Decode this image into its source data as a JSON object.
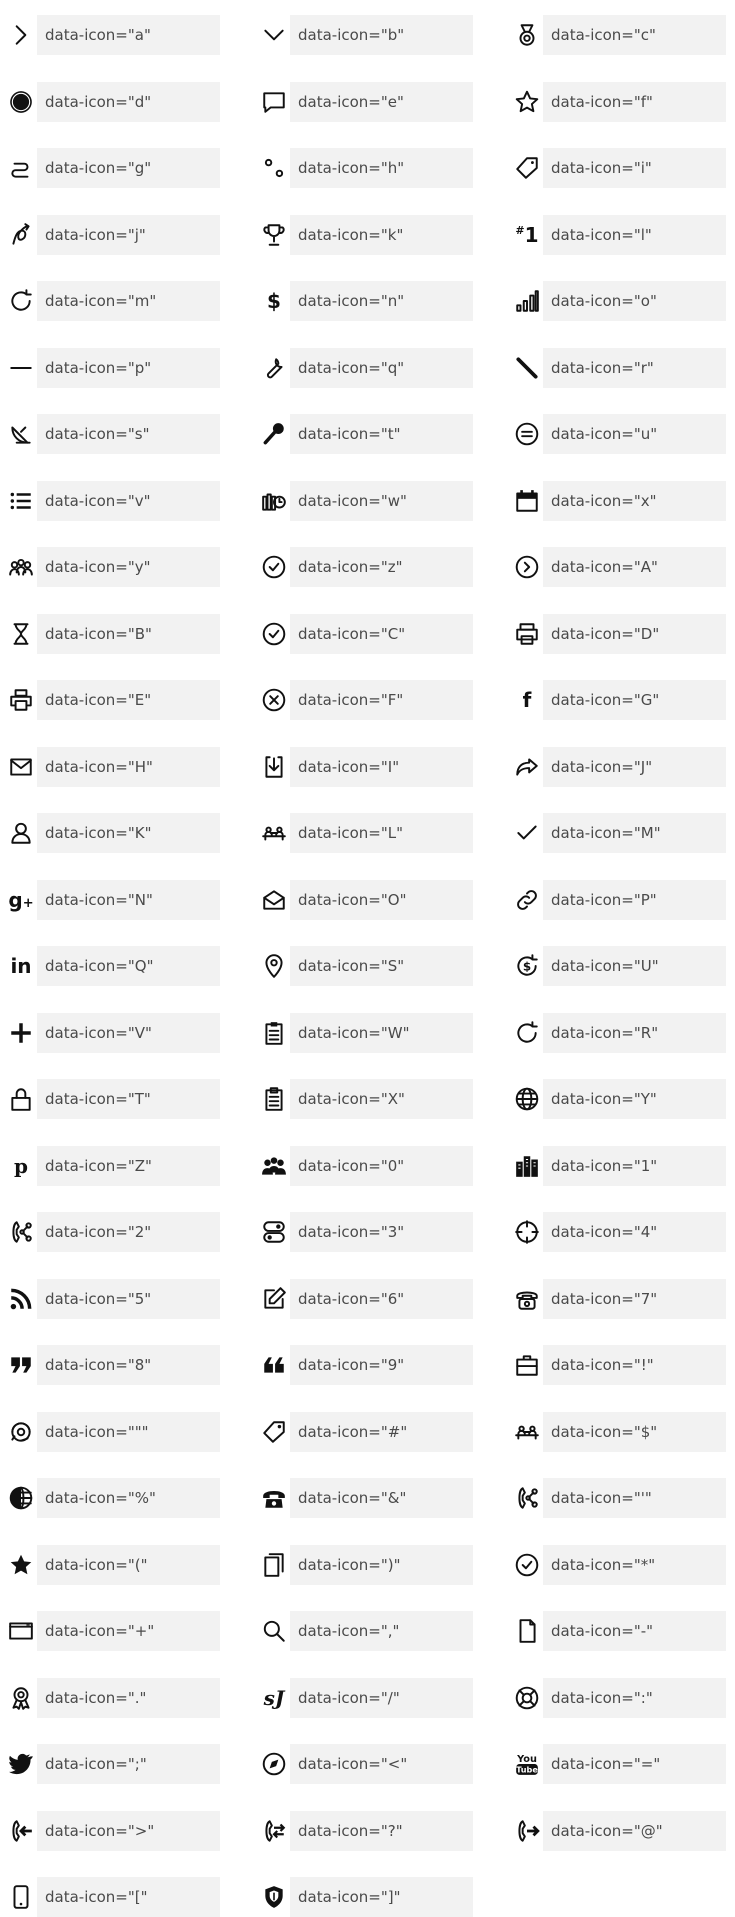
{
  "icons": [
    {
      "label": "data-icon=\"a\"",
      "icon": "chevron-right-icon"
    },
    {
      "label": "data-icon=\"b\"",
      "icon": "chevron-down-icon"
    },
    {
      "label": "data-icon=\"c\"",
      "icon": "medal-icon"
    },
    {
      "label": "data-icon=\"d\"",
      "icon": "seal-badge-icon"
    },
    {
      "label": "data-icon=\"e\"",
      "icon": "speech-bubble-icon"
    },
    {
      "label": "data-icon=\"f\"",
      "icon": "star-outline-icon"
    },
    {
      "label": "data-icon=\"g\"",
      "icon": "wind-curl-icon"
    },
    {
      "label": "data-icon=\"h\"",
      "icon": "two-circles-icon"
    },
    {
      "label": "data-icon=\"i\"",
      "icon": "tag-outline-icon"
    },
    {
      "label": "data-icon=\"j\"",
      "icon": "bent-arrow-icon"
    },
    {
      "label": "data-icon=\"k\"",
      "icon": "trophy-icon"
    },
    {
      "label": "data-icon=\"l\"",
      "icon": "number-one-icon"
    },
    {
      "label": "data-icon=\"m\"",
      "icon": "refresh-icon"
    },
    {
      "label": "data-icon=\"n\"",
      "icon": "dollar-icon"
    },
    {
      "label": "data-icon=\"o\"",
      "icon": "bar-chart-icon"
    },
    {
      "label": "data-icon=\"p\"",
      "icon": "minus-line-icon"
    },
    {
      "label": "data-icon=\"q\"",
      "icon": "wrench-icon"
    },
    {
      "label": "data-icon=\"r\"",
      "icon": "diagonal-line-icon"
    },
    {
      "label": "data-icon=\"s\"",
      "icon": "satellite-dish-icon"
    },
    {
      "label": "data-icon=\"t\"",
      "icon": "key-icon"
    },
    {
      "label": "data-icon=\"u\"",
      "icon": "menu-circle-icon"
    },
    {
      "label": "data-icon=\"v\"",
      "icon": "list-icon"
    },
    {
      "label": "data-icon=\"w\"",
      "icon": "money-clock-icon"
    },
    {
      "label": "data-icon=\"x\"",
      "icon": "calendar-icon"
    },
    {
      "label": "data-icon=\"y\"",
      "icon": "group-icon"
    },
    {
      "label": "data-icon=\"z\"",
      "icon": "check-circle-icon"
    },
    {
      "label": "data-icon=\"A\"",
      "icon": "arrow-right-circle-icon"
    },
    {
      "label": "data-icon=\"B\"",
      "icon": "hourglass-icon"
    },
    {
      "label": "data-icon=\"C\"",
      "icon": "check-circle-icon"
    },
    {
      "label": "data-icon=\"D\"",
      "icon": "printer-icon"
    },
    {
      "label": "data-icon=\"E\"",
      "icon": "printer-outline-icon"
    },
    {
      "label": "data-icon=\"F\"",
      "icon": "close-circle-icon"
    },
    {
      "label": "data-icon=\"G\"",
      "icon": "facebook-icon"
    },
    {
      "label": "data-icon=\"H\"",
      "icon": "mail-icon"
    },
    {
      "label": "data-icon=\"I\"",
      "icon": "download-box-icon"
    },
    {
      "label": "data-icon=\"J\"",
      "icon": "share-arrow-icon"
    },
    {
      "label": "data-icon=\"K\"",
      "icon": "user-icon"
    },
    {
      "label": "data-icon=\"L\"",
      "icon": "meeting-icon"
    },
    {
      "label": "data-icon=\"M\"",
      "icon": "checkmark-icon"
    },
    {
      "label": "data-icon=\"N\"",
      "icon": "google-plus-icon"
    },
    {
      "label": "data-icon=\"O\"",
      "icon": "open-mail-icon"
    },
    {
      "label": "data-icon=\"P\"",
      "icon": "link-icon"
    },
    {
      "label": "data-icon=\"Q\"",
      "icon": "linkedin-icon"
    },
    {
      "label": "data-icon=\"S\"",
      "icon": "map-pin-icon"
    },
    {
      "label": "data-icon=\"U\"",
      "icon": "dollar-refresh-icon"
    },
    {
      "label": "data-icon=\"V\"",
      "icon": "plus-icon"
    },
    {
      "label": "data-icon=\"W\"",
      "icon": "clipboard-icon"
    },
    {
      "label": "data-icon=\"R\"",
      "icon": "refresh-icon"
    },
    {
      "label": "data-icon=\"T\"",
      "icon": "lock-icon"
    },
    {
      "label": "data-icon=\"X\"",
      "icon": "clipboard-outline-icon"
    },
    {
      "label": "data-icon=\"Y\"",
      "icon": "globe-icon"
    },
    {
      "label": "data-icon=\"Z\"",
      "icon": "pinterest-icon"
    },
    {
      "label": "data-icon=\"0\"",
      "icon": "users-icon"
    },
    {
      "label": "data-icon=\"1\"",
      "icon": "buildings-icon"
    },
    {
      "label": "data-icon=\"2\"",
      "icon": "phone-share-icon"
    },
    {
      "label": "data-icon=\"3\"",
      "icon": "toggle-stack-icon"
    },
    {
      "label": "data-icon=\"4\"",
      "icon": "crosshair-icon"
    },
    {
      "label": "data-icon=\"5\"",
      "icon": "rss-icon"
    },
    {
      "label": "data-icon=\"6\"",
      "icon": "edit-icon"
    },
    {
      "label": "data-icon=\"7\"",
      "icon": "telephone-icon"
    },
    {
      "label": "data-icon=\"8\"",
      "icon": "quote-open-icon"
    },
    {
      "label": "data-icon=\"9\"",
      "icon": "quote-close-icon"
    },
    {
      "label": "data-icon=\"!\"",
      "icon": "briefcase-icon"
    },
    {
      "label": "data-icon=\"\"\"",
      "icon": "support-headset-icon"
    },
    {
      "label": "data-icon=\"#\"",
      "icon": "tag-icon"
    },
    {
      "label": "data-icon=\"$\"",
      "icon": "meeting-icon"
    },
    {
      "label": "data-icon=\"%\"",
      "icon": "globe-half-icon"
    },
    {
      "label": "data-icon=\"&\"",
      "icon": "telephone-filled-icon"
    },
    {
      "label": "data-icon=\"'\"",
      "icon": "phone-share-icon"
    },
    {
      "label": "data-icon=\"(\"",
      "icon": "star-filled-icon"
    },
    {
      "label": "data-icon=\")\"",
      "icon": "clipboard-copy-icon"
    },
    {
      "label": "data-icon=\"*\"",
      "icon": "check-circle-thin-icon"
    },
    {
      "label": "data-icon=\"+\"",
      "icon": "browser-window-icon"
    },
    {
      "label": "data-icon=\",\"",
      "icon": "search-icon"
    },
    {
      "label": "data-icon=\"-\"",
      "icon": "document-icon"
    },
    {
      "label": "data-icon=\".\"",
      "icon": "award-icon"
    },
    {
      "label": "data-icon=\"/\"",
      "icon": "logo-mark-icon"
    },
    {
      "label": "data-icon=\":\"",
      "icon": "lifebuoy-icon"
    },
    {
      "label": "data-icon=\";\"",
      "icon": "twitter-icon"
    },
    {
      "label": "data-icon=\"<\"",
      "icon": "compass-icon"
    },
    {
      "label": "data-icon=\"=\"",
      "icon": "youtube-icon"
    },
    {
      "label": "data-icon=\">\"",
      "icon": "phone-incoming-icon"
    },
    {
      "label": "data-icon=\"?\"",
      "icon": "phone-transfer-icon"
    },
    {
      "label": "data-icon=\"@\"",
      "icon": "phone-outgoing-icon"
    },
    {
      "label": "data-icon=\"[\"",
      "icon": "mobile-phone-icon"
    },
    {
      "label": "data-icon=\"]\"",
      "icon": "shield-icon"
    }
  ]
}
